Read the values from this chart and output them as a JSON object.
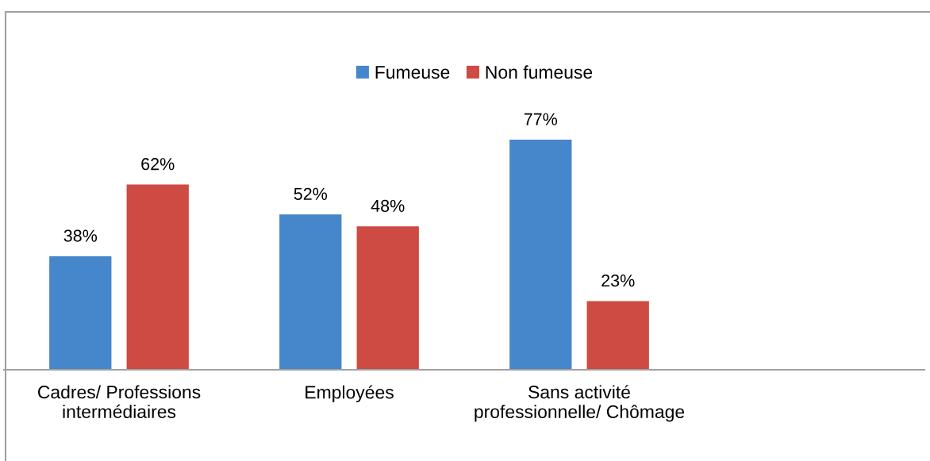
{
  "chart_data": {
    "type": "bar",
    "categories": [
      "Cadres/ Professions\nintermédiaires",
      "Employées",
      "Sans activité\nprofessionnelle/ Chômage",
      null
    ],
    "series": [
      {
        "name": "Fumeuse",
        "color": "#4686cb",
        "values": [
          38,
          52,
          77,
          null
        ],
        "value_labels": [
          "38%",
          "52%",
          "77%",
          null
        ]
      },
      {
        "name": "Non fumeuse",
        "color": "#cd4b42",
        "values": [
          62,
          48,
          23,
          null
        ],
        "value_labels": [
          "62%",
          "48%",
          "23%",
          null
        ]
      }
    ],
    "legend": "top",
    "grid": false
  }
}
